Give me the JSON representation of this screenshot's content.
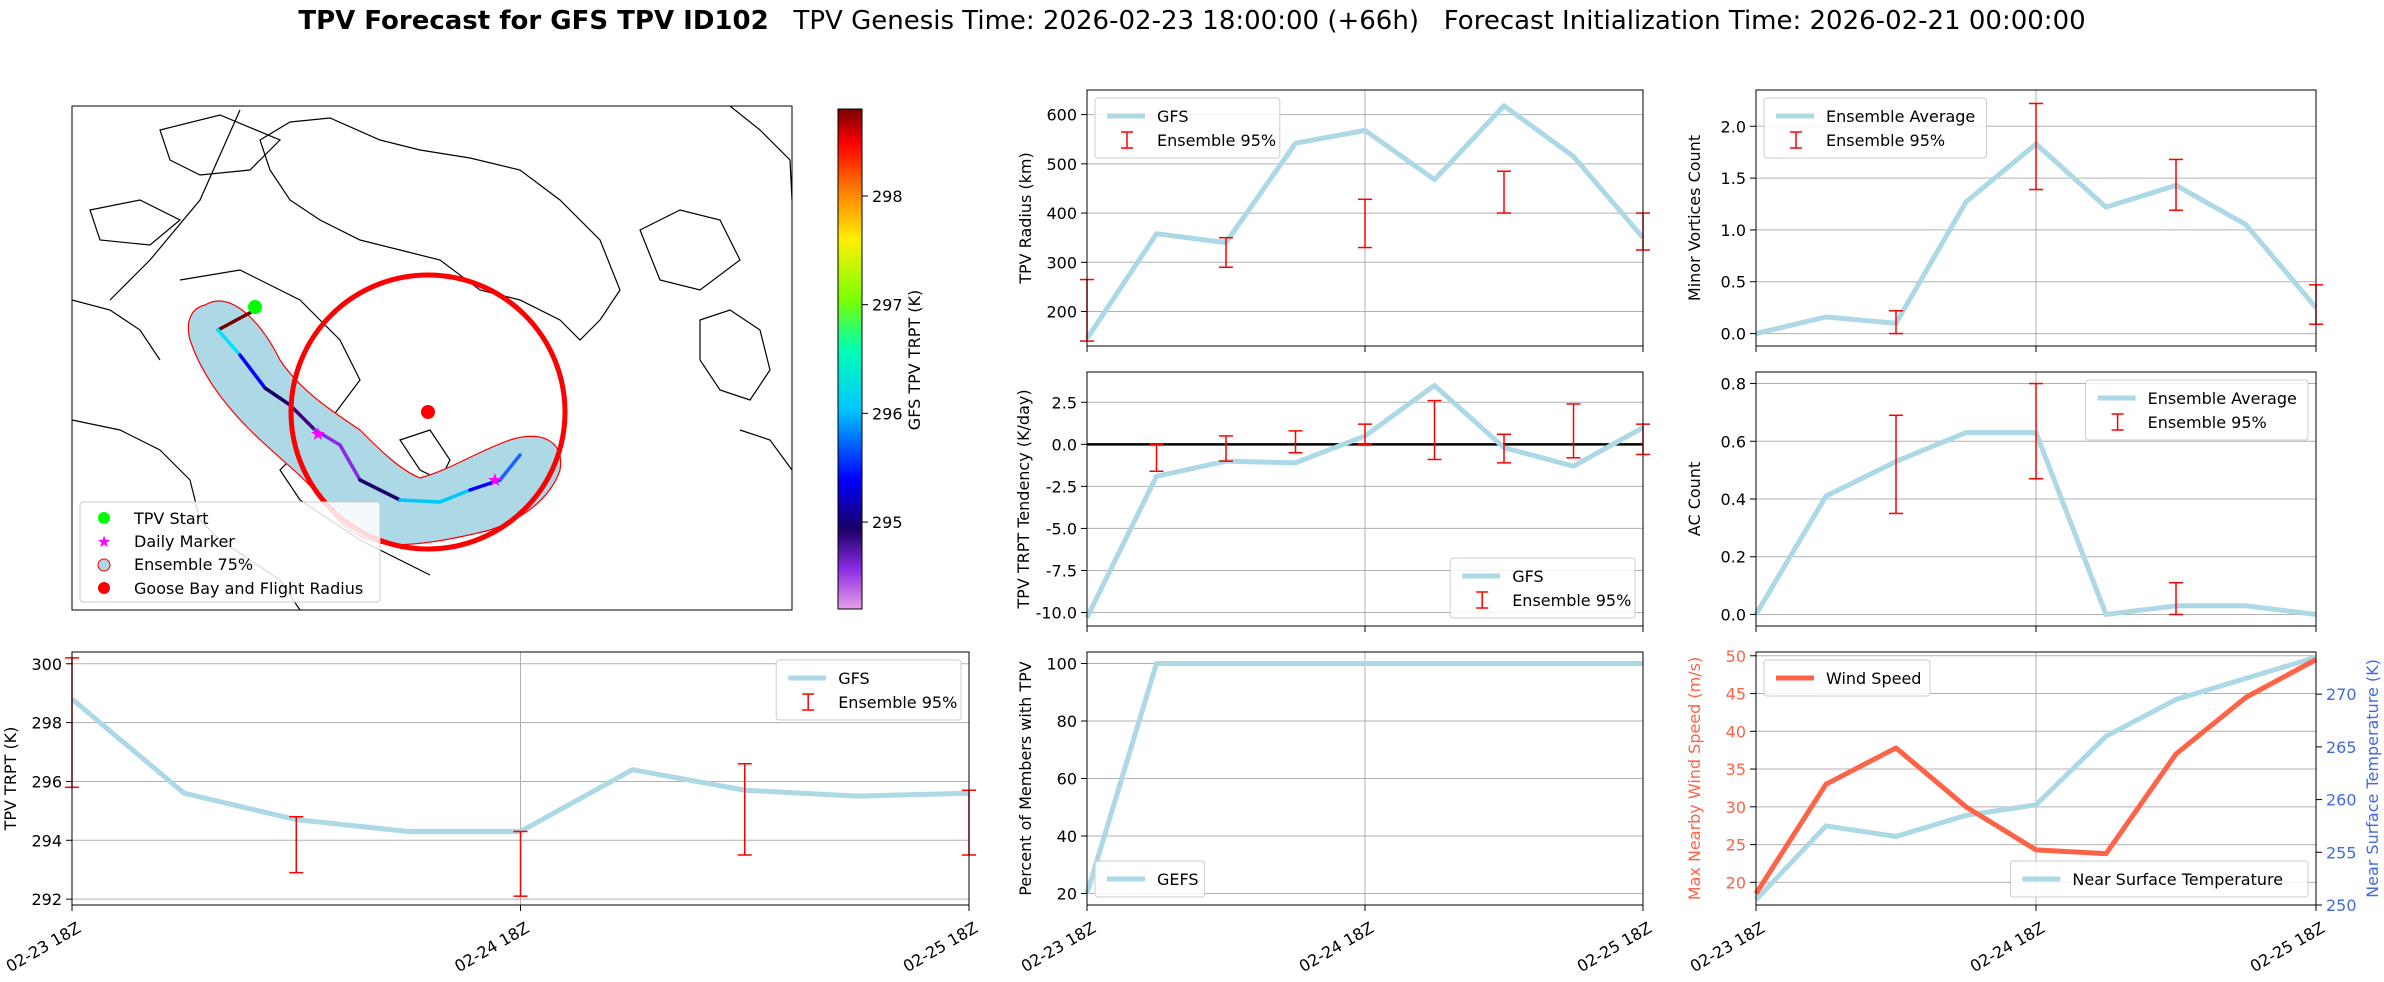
{
  "title": {
    "bold": "TPV Forecast for GFS TPV ID102",
    "genesis": "TPV Genesis Time: 2026-02-23 18:00:00 (+66h)",
    "init": "Forecast Initialization Time: 2026-02-21 00:00:00"
  },
  "colors": {
    "gfs_line": "#add8e6",
    "ens_error": "#ff0000",
    "wind": "#ff6347",
    "temp": "#add8e6",
    "temp_axis": "#4169e1",
    "start": "#00ff00",
    "marker": "#ff00ff",
    "goose": "#ff0000"
  },
  "time_ticks": [
    "02-23 18Z",
    "02-24 18Z",
    "02-25 18Z"
  ],
  "map": {
    "colorbar_label": "GFS TPV TRPT (K)",
    "colorbar_ticks": [
      "295",
      "296",
      "297",
      "298"
    ],
    "colorbar_range": [
      294.2,
      298.8
    ],
    "legend": [
      "TPV Start",
      "Daily Marker",
      "Ensemble 75%",
      "Goose Bay and Flight Radius"
    ]
  },
  "chart_data": [
    {
      "id": "radius",
      "type": "line",
      "ylabel": "TPV Radius (km)",
      "ylim": [
        130,
        650
      ],
      "yticks": [
        200,
        300,
        400,
        500,
        600
      ],
      "legend_position": "top-left",
      "legend": [
        "GFS",
        "Ensemble 95%"
      ],
      "x": [
        0,
        0.25,
        0.5,
        0.75,
        1.0,
        1.25,
        1.5,
        1.75,
        2.0
      ],
      "values": [
        145,
        358,
        340,
        542,
        568,
        468,
        618,
        515,
        350
      ],
      "errorbars": [
        {
          "x": 0.0,
          "low": 140,
          "high": 265
        },
        {
          "x": 0.5,
          "low": 290,
          "high": 350
        },
        {
          "x": 1.0,
          "low": 330,
          "high": 428
        },
        {
          "x": 1.5,
          "low": 400,
          "high": 485
        },
        {
          "x": 2.0,
          "low": 325,
          "high": 400
        }
      ]
    },
    {
      "id": "minor",
      "type": "line",
      "ylabel": "Minor Vortices Count",
      "ylim": [
        -0.12,
        2.35
      ],
      "yticks": [
        0.0,
        0.5,
        1.0,
        1.5,
        2.0
      ],
      "legend_position": "top-left",
      "legend": [
        "Ensemble Average",
        "Ensemble 95%"
      ],
      "x": [
        0,
        0.25,
        0.5,
        0.75,
        1.0,
        1.25,
        1.5,
        1.75,
        2.0
      ],
      "values": [
        0.0,
        0.16,
        0.1,
        1.27,
        1.83,
        1.22,
        1.43,
        1.05,
        0.25
      ],
      "errorbars": [
        {
          "x": 0.5,
          "low": 0.0,
          "high": 0.22
        },
        {
          "x": 1.0,
          "low": 1.39,
          "high": 2.22
        },
        {
          "x": 1.5,
          "low": 1.19,
          "high": 1.68
        },
        {
          "x": 2.0,
          "low": 0.09,
          "high": 0.47
        }
      ]
    },
    {
      "id": "tendency",
      "type": "line",
      "ylabel": "TPV TRPT Tendency (K/day)",
      "ylim": [
        -10.8,
        4.3
      ],
      "yticks": [
        -10.0,
        -7.5,
        -5.0,
        -2.5,
        0.0,
        2.5
      ],
      "zero_line": true,
      "legend_position": "bottom-right",
      "legend": [
        "GFS",
        "Ensemble 95%"
      ],
      "x": [
        0,
        0.25,
        0.5,
        0.75,
        1.0,
        1.25,
        1.5,
        1.75,
        2.0
      ],
      "values": [
        -10.3,
        -1.9,
        -1.0,
        -1.1,
        0.5,
        3.5,
        -0.2,
        -1.3,
        1.0
      ],
      "errorbars": [
        {
          "x": 0.25,
          "low": -1.6,
          "high": 0.0
        },
        {
          "x": 0.5,
          "low": -1.0,
          "high": 0.5
        },
        {
          "x": 0.75,
          "low": -0.5,
          "high": 0.8
        },
        {
          "x": 1.0,
          "low": 0.0,
          "high": 1.2
        },
        {
          "x": 1.25,
          "low": -0.9,
          "high": 2.6
        },
        {
          "x": 1.5,
          "low": -1.1,
          "high": 0.6
        },
        {
          "x": 1.75,
          "low": -0.8,
          "high": 2.4
        },
        {
          "x": 2.0,
          "low": -0.6,
          "high": 1.2
        }
      ]
    },
    {
      "id": "ac",
      "type": "line",
      "ylabel": "AC Count",
      "ylim": [
        -0.04,
        0.84
      ],
      "yticks": [
        0.0,
        0.2,
        0.4,
        0.6,
        0.8
      ],
      "legend_position": "top-right",
      "legend": [
        "Ensemble Average",
        "Ensemble 95%"
      ],
      "x": [
        0,
        0.25,
        0.5,
        0.75,
        1.0,
        1.25,
        1.5,
        1.75,
        2.0
      ],
      "values": [
        0.0,
        0.41,
        0.53,
        0.63,
        0.63,
        0.0,
        0.03,
        0.03,
        0.0
      ],
      "errorbars": [
        {
          "x": 0.5,
          "low": 0.35,
          "high": 0.69
        },
        {
          "x": 1.0,
          "low": 0.47,
          "high": 0.8
        },
        {
          "x": 1.5,
          "low": 0.0,
          "high": 0.11
        }
      ]
    },
    {
      "id": "trpt",
      "type": "line",
      "ylabel": "TPV TRPT (K)",
      "ylim": [
        291.8,
        300.4
      ],
      "yticks": [
        292,
        294,
        296,
        298,
        300
      ],
      "legend_position": "top-right",
      "legend": [
        "GFS",
        "Ensemble 95%"
      ],
      "x": [
        0,
        0.25,
        0.5,
        0.75,
        1.0,
        1.25,
        1.5,
        1.75,
        2.0
      ],
      "values": [
        298.8,
        295.6,
        294.7,
        294.3,
        294.3,
        296.4,
        295.7,
        295.5,
        295.6
      ],
      "errorbars": [
        {
          "x": 0.0,
          "low": 295.8,
          "high": 300.2
        },
        {
          "x": 0.5,
          "low": 292.9,
          "high": 294.8
        },
        {
          "x": 1.0,
          "low": 292.1,
          "high": 294.3
        },
        {
          "x": 1.5,
          "low": 293.5,
          "high": 296.6
        },
        {
          "x": 2.0,
          "low": 293.5,
          "high": 295.7
        }
      ]
    },
    {
      "id": "percent",
      "type": "line",
      "ylabel": "Percent of Members with TPV",
      "ylim": [
        16,
        104
      ],
      "yticks": [
        20,
        40,
        60,
        80,
        100
      ],
      "legend_position": "bottom-left",
      "legend": [
        "GEFS"
      ],
      "x": [
        0,
        0.25,
        0.5,
        0.75,
        1.0,
        1.25,
        1.5,
        1.75,
        2.0
      ],
      "values": [
        20,
        100,
        100,
        100,
        100,
        100,
        100,
        100,
        100
      ]
    },
    {
      "id": "wind_temp",
      "type": "line",
      "ylabel": "Max Nearby Wind Speed (m/s)",
      "ylabel_right": "Near Surface Temperature (K)",
      "ylim": [
        17,
        50.5
      ],
      "yticks": [
        20,
        25,
        30,
        35,
        40,
        45,
        50
      ],
      "ylim_right": [
        250,
        274
      ],
      "yticks_right": [
        250,
        255,
        260,
        265,
        270
      ],
      "legend": [
        "Wind Speed"
      ],
      "legend_right": [
        "Near Surface Temperature"
      ],
      "x": [
        0,
        0.25,
        0.5,
        0.75,
        1.0,
        1.25,
        1.5,
        1.75,
        2.0
      ],
      "values": [
        18.5,
        33,
        37.8,
        30,
        24.3,
        23.8,
        37,
        44.5,
        49.5
      ],
      "values_right": [
        250.5,
        257.5,
        256.5,
        258.5,
        259.5,
        266,
        269.5,
        271.5,
        273.5
      ]
    }
  ]
}
